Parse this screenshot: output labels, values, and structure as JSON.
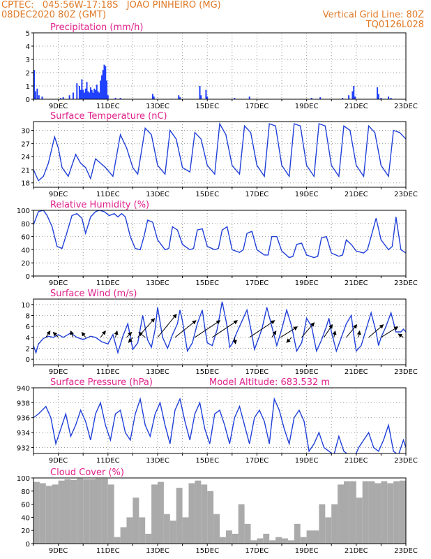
{
  "header": {
    "line1_left": "CPTEC:   045:56W-17:18S   JOAO PINHEIRO (MG)",
    "line2_left": "08DEC2020 80Z (GMT)",
    "line1_right": "Vertical Grid Line: 80Z",
    "line2_right": "TQ0126L028"
  },
  "colors": {
    "header": "#e07a28",
    "title": "#e0208c",
    "line": "#2040d8",
    "bar": "#2040ff",
    "cloud": "#aaaaaa",
    "arrow": "#000000"
  },
  "chart_data": [
    {
      "type": "bar",
      "title": "Precipitation (mm/h)",
      "ylim": [
        0,
        5
      ],
      "yticks": [
        0,
        1,
        2,
        3,
        4,
        5
      ],
      "xlim": [
        8.0,
        23.0
      ],
      "xticks": [
        "9DEC",
        "11DEC",
        "13DEC",
        "15DEC",
        "17DEC",
        "19DEC",
        "21DEC",
        "23DEC"
      ],
      "grid": true,
      "x": [
        8.03,
        8.08,
        8.15,
        8.22,
        8.35,
        9.1,
        9.2,
        9.45,
        9.6,
        9.75,
        9.85,
        9.9,
        9.95,
        10.0,
        10.05,
        10.1,
        10.15,
        10.2,
        10.25,
        10.3,
        10.35,
        10.4,
        10.45,
        10.5,
        10.55,
        10.6,
        10.65,
        10.7,
        10.75,
        10.8,
        10.85,
        10.9,
        10.95,
        11.0,
        11.3,
        11.5,
        12.8,
        12.85,
        13.85,
        13.9,
        14.7,
        14.75,
        14.95,
        15.0,
        16.1,
        16.7,
        19.2,
        19.55,
        20.45,
        20.7,
        20.85,
        20.9,
        20.95,
        21.85,
        21.9,
        22.0,
        22.3,
        22.4
      ],
      "values": [
        2.2,
        0.6,
        0.8,
        0.3,
        0.2,
        0.1,
        0.15,
        0.3,
        0.5,
        1.2,
        1.0,
        0.7,
        1.5,
        0.7,
        0.5,
        0.8,
        1.3,
        0.6,
        0.5,
        0.9,
        0.7,
        0.5,
        0.8,
        0.7,
        1.1,
        0.6,
        0.5,
        1.4,
        1.8,
        2.2,
        2.6,
        2.5,
        1.4,
        0.3,
        0.1,
        0.1,
        0.4,
        0.2,
        0.3,
        0.15,
        1.0,
        0.3,
        0.7,
        0.2,
        0.1,
        0.2,
        0.1,
        0.15,
        0.1,
        0.3,
        0.6,
        1.0,
        0.2,
        0.9,
        0.4,
        0.1,
        0.2,
        0.1
      ]
    },
    {
      "type": "line",
      "title": "Surface Temperature (nC)",
      "ylim": [
        17,
        32
      ],
      "yticks": [
        18,
        21,
        24,
        27,
        30
      ],
      "xlim": [
        8.0,
        23.0
      ],
      "xticks": [
        "9DEC",
        "11DEC",
        "13DEC",
        "15DEC",
        "17DEC",
        "19DEC",
        "21DEC",
        "23DEC"
      ],
      "grid": true,
      "x": [
        8.0,
        8.2,
        8.4,
        8.6,
        8.85,
        9.0,
        9.15,
        9.4,
        9.7,
        9.9,
        10.1,
        10.3,
        10.5,
        10.7,
        10.9,
        11.2,
        11.5,
        11.75,
        12.0,
        12.2,
        12.5,
        12.75,
        13.0,
        13.3,
        13.5,
        13.75,
        14.0,
        14.3,
        14.5,
        14.75,
        15.0,
        15.3,
        15.5,
        15.75,
        16.0,
        16.3,
        16.5,
        16.75,
        17.0,
        17.3,
        17.5,
        17.75,
        18.0,
        18.3,
        18.5,
        18.75,
        19.0,
        19.3,
        19.5,
        19.75,
        20.0,
        20.3,
        20.5,
        20.75,
        21.0,
        21.3,
        21.5,
        21.75,
        22.0,
        22.3,
        22.5,
        22.75,
        23.0
      ],
      "values": [
        21,
        18.5,
        19.5,
        22.5,
        28.5,
        26,
        21.5,
        19.5,
        24.5,
        22.5,
        21.5,
        19,
        23.5,
        22.5,
        21.5,
        19.5,
        29,
        26,
        21.5,
        20,
        30.5,
        29,
        22,
        20,
        30,
        28,
        21.5,
        20.5,
        29.5,
        28,
        22,
        20,
        31.5,
        29,
        22,
        20,
        31,
        29.5,
        22,
        19.5,
        31.5,
        31,
        22,
        19.5,
        31.5,
        31,
        22,
        19.5,
        31.5,
        31,
        22,
        19.5,
        31,
        30,
        22,
        19.5,
        31,
        29.5,
        22,
        19.5,
        30,
        29.5,
        28
      ]
    },
    {
      "type": "line",
      "title": "Relative Humidity (%)",
      "ylim": [
        0,
        100
      ],
      "yticks": [
        0,
        20,
        40,
        60,
        80,
        100
      ],
      "xlim": [
        8.0,
        23.0
      ],
      "xticks": [
        "9DEC",
        "11DEC",
        "13DEC",
        "15DEC",
        "17DEC",
        "19DEC",
        "21DEC",
        "23DEC"
      ],
      "grid": true,
      "x": [
        8.0,
        8.2,
        8.4,
        8.55,
        8.75,
        8.95,
        9.15,
        9.3,
        9.55,
        9.75,
        9.95,
        10.1,
        10.3,
        10.5,
        10.65,
        10.85,
        11.05,
        11.25,
        11.4,
        11.55,
        11.7,
        11.9,
        12.1,
        12.3,
        12.45,
        12.6,
        12.8,
        13.0,
        13.3,
        13.45,
        13.6,
        13.8,
        14.0,
        14.3,
        14.45,
        14.6,
        14.8,
        15.0,
        15.3,
        15.45,
        15.6,
        15.8,
        16.0,
        16.3,
        16.45,
        16.6,
        16.8,
        17.0,
        17.3,
        17.45,
        17.6,
        17.8,
        18.0,
        18.3,
        18.45,
        18.6,
        18.8,
        19.0,
        19.3,
        19.45,
        19.6,
        19.8,
        20.0,
        20.3,
        20.45,
        20.6,
        20.8,
        21.0,
        21.3,
        21.45,
        21.6,
        21.8,
        22.0,
        22.3,
        22.45,
        22.6,
        22.8,
        23.0
      ],
      "values": [
        78,
        98,
        100,
        92,
        75,
        45,
        42,
        60,
        92,
        95,
        88,
        65,
        90,
        98,
        100,
        98,
        92,
        95,
        90,
        95,
        90,
        60,
        42,
        40,
        60,
        85,
        82,
        55,
        40,
        42,
        75,
        70,
        48,
        40,
        42,
        70,
        72,
        45,
        40,
        42,
        70,
        75,
        40,
        36,
        40,
        65,
        68,
        40,
        32,
        32,
        60,
        60,
        38,
        28,
        30,
        48,
        50,
        32,
        28,
        30,
        58,
        60,
        35,
        30,
        32,
        55,
        48,
        38,
        35,
        40,
        60,
        88,
        55,
        40,
        45,
        90,
        40,
        35
      ]
    },
    {
      "type": "line",
      "title": "Surface Wind (m/s)",
      "ylim": [
        -1,
        11
      ],
      "yticks": [
        0,
        2,
        4,
        6,
        8,
        10
      ],
      "xlim": [
        8.0,
        23.0
      ],
      "xticks": [
        "9DEC",
        "11DEC",
        "13DEC",
        "15DEC",
        "17DEC",
        "19DEC",
        "21DEC",
        "23DEC"
      ],
      "grid": true,
      "x": [
        8.0,
        8.1,
        8.2,
        8.4,
        8.6,
        8.8,
        9.0,
        9.2,
        9.5,
        9.75,
        10.0,
        10.3,
        10.5,
        10.75,
        11.0,
        11.2,
        11.4,
        11.6,
        11.8,
        12.0,
        12.2,
        12.4,
        12.6,
        12.75,
        12.9,
        13.0,
        13.2,
        13.4,
        13.6,
        13.8,
        13.9,
        14.0,
        14.2,
        14.4,
        14.6,
        14.8,
        14.9,
        15.0,
        15.2,
        15.4,
        15.6,
        15.8,
        15.9,
        16.0,
        16.2,
        16.4,
        16.6,
        16.8,
        16.9,
        17.0,
        17.2,
        17.4,
        17.6,
        17.8,
        17.9,
        18.0,
        18.2,
        18.4,
        18.6,
        18.8,
        18.9,
        19.0,
        19.2,
        19.4,
        19.6,
        19.8,
        19.9,
        20.0,
        20.2,
        20.4,
        20.6,
        20.8,
        20.9,
        21.0,
        21.2,
        21.4,
        21.6,
        21.8,
        21.9,
        22.0,
        22.2,
        22.4,
        22.6,
        22.8,
        22.9,
        23.0
      ],
      "values": [
        2.5,
        1.2,
        2.8,
        3.8,
        4.2,
        4.0,
        4.5,
        4.0,
        4.8,
        4.0,
        3.6,
        4.2,
        4.0,
        3.2,
        2.8,
        4.5,
        1.2,
        4.2,
        6.5,
        1.8,
        3.0,
        8.0,
        3.5,
        2.2,
        5.5,
        9.5,
        4.0,
        2.0,
        4.5,
        6.5,
        9.0,
        7.0,
        1.5,
        3.0,
        6.5,
        9.0,
        5.8,
        3.0,
        2.5,
        5.5,
        10.5,
        6.0,
        2.2,
        2.8,
        5.0,
        7.0,
        9.0,
        4.5,
        1.8,
        3.0,
        5.5,
        9.5,
        6.0,
        2.5,
        4.0,
        5.5,
        9.0,
        6.0,
        1.5,
        3.0,
        5.0,
        7.5,
        6.0,
        1.5,
        3.5,
        6.0,
        7.5,
        5.0,
        1.5,
        4.0,
        6.5,
        8.0,
        4.5,
        1.5,
        2.5,
        5.5,
        8.5,
        5.0,
        2.5,
        4.0,
        6.0,
        8.5,
        5.0,
        5.0,
        5.5,
        5.0
      ],
      "arrows": [
        {
          "x": 8.5,
          "u": 1.0,
          "v": 1.5
        },
        {
          "x": 9.0,
          "u": -1.2,
          "v": 1.2
        },
        {
          "x": 9.6,
          "u": -0.6,
          "v": 1.5
        },
        {
          "x": 10.1,
          "u": -0.9,
          "v": 1.2
        },
        {
          "x": 10.7,
          "u": 1.2,
          "v": 1.5
        },
        {
          "x": 11.3,
          "u": 0.4,
          "v": 1.5
        },
        {
          "x": 11.75,
          "u": 1.2,
          "v": 1.2
        },
        {
          "x": 12.0,
          "u": -1.0,
          "v": -1.2
        },
        {
          "x": 12.2,
          "u": 4.0,
          "v": 4.5
        },
        {
          "x": 12.5,
          "u": -1.5,
          "v": 1.2
        },
        {
          "x": 13.0,
          "u": 4.5,
          "v": 5.5
        },
        {
          "x": 13.7,
          "u": 5.0,
          "v": 4.0
        },
        {
          "x": 14.5,
          "u": 6.0,
          "v": 4.0
        },
        {
          "x": 15.2,
          "u": 6.0,
          "v": 4.0
        },
        {
          "x": 16.1,
          "u": 0.2,
          "v": -1.5
        },
        {
          "x": 16.7,
          "u": 6.0,
          "v": 4.0
        },
        {
          "x": 17.6,
          "u": 1.0,
          "v": 1.5
        },
        {
          "x": 17.95,
          "u": 4.0,
          "v": 2.5
        },
        {
          "x": 18.4,
          "u": -1.2,
          "v": -1.2
        },
        {
          "x": 18.8,
          "u": 3.0,
          "v": 3.5
        },
        {
          "x": 19.7,
          "u": 2.0,
          "v": 3.0
        },
        {
          "x": 20.1,
          "u": 0.3,
          "v": 1.5
        },
        {
          "x": 20.6,
          "u": 2.5,
          "v": 3.0
        },
        {
          "x": 21.1,
          "u": 0.2,
          "v": 1.5
        },
        {
          "x": 21.5,
          "u": 3.5,
          "v": 3.0
        },
        {
          "x": 22.0,
          "u": 4.0,
          "v": 2.5
        },
        {
          "x": 22.9,
          "u": -1.2,
          "v": 0.8
        }
      ]
    },
    {
      "type": "line",
      "title": "Surface Pressure (hPa)",
      "annotation": "Model Altitude: 683.532 m",
      "ylim": [
        931.2,
        940
      ],
      "yticks": [
        932,
        934,
        936,
        938,
        940
      ],
      "xlim": [
        8.0,
        23.0
      ],
      "xticks": [
        "9DEC",
        "11DEC",
        "13DEC",
        "15DEC",
        "17DEC",
        "19DEC",
        "21DEC",
        "23DEC"
      ],
      "grid": true,
      "x": [
        8.0,
        8.2,
        8.5,
        8.7,
        8.9,
        9.1,
        9.3,
        9.5,
        9.7,
        9.9,
        10.1,
        10.3,
        10.5,
        10.7,
        10.9,
        11.1,
        11.3,
        11.5,
        11.7,
        11.9,
        12.1,
        12.3,
        12.5,
        12.7,
        12.9,
        13.1,
        13.3,
        13.5,
        13.7,
        13.9,
        14.1,
        14.3,
        14.5,
        14.7,
        14.9,
        15.1,
        15.3,
        15.5,
        15.7,
        15.9,
        16.1,
        16.3,
        16.5,
        16.7,
        16.9,
        17.1,
        17.3,
        17.5,
        17.7,
        17.9,
        18.1,
        18.3,
        18.5,
        18.7,
        18.9,
        19.1,
        19.3,
        19.5,
        19.7,
        19.9,
        20.1,
        20.3,
        20.5,
        20.7,
        20.9,
        21.1,
        21.3,
        21.5,
        21.7,
        21.9,
        22.1,
        22.3,
        22.5,
        22.7,
        22.9,
        23.0
      ],
      "values": [
        936,
        936.5,
        937.5,
        936,
        932.5,
        934.5,
        936.5,
        933.5,
        935,
        937,
        935.5,
        933,
        936.5,
        938,
        935,
        933,
        936.5,
        937,
        934,
        933,
        936.5,
        938.5,
        935,
        933.5,
        936.5,
        938,
        935,
        932.5,
        937,
        938.5,
        935.5,
        933,
        936.5,
        938,
        934.5,
        932.5,
        936.5,
        937,
        935,
        932.5,
        936,
        937.5,
        935,
        932.5,
        936,
        937,
        935.5,
        932.5,
        938.5,
        937,
        934.5,
        932.5,
        936,
        937,
        935.5,
        931.5,
        932.5,
        934,
        932,
        931.5,
        931,
        933.5,
        931.5,
        931,
        930.5,
        932,
        933,
        934,
        932,
        931.5,
        933,
        935,
        931.5,
        931,
        933,
        932
      ]
    },
    {
      "type": "bar",
      "title": "Cloud Cover (%)",
      "ylim": [
        0,
        100
      ],
      "yticks": [
        0,
        20,
        40,
        60,
        80,
        100
      ],
      "xlim": [
        8.0,
        23.0
      ],
      "xticks": [
        "9DEC",
        "11DEC",
        "13DEC",
        "15DEC",
        "17DEC",
        "19DEC",
        "21DEC",
        "23DEC"
      ],
      "grid": false,
      "x": [
        8.0,
        8.25,
        8.5,
        8.75,
        9.0,
        9.25,
        9.5,
        9.75,
        10.0,
        10.25,
        10.5,
        10.75,
        11.0,
        11.25,
        11.5,
        11.75,
        12.0,
        12.25,
        12.5,
        12.75,
        13.0,
        13.25,
        13.5,
        13.75,
        14.0,
        14.25,
        14.5,
        14.75,
        15.0,
        15.25,
        15.5,
        15.75,
        16.0,
        16.25,
        16.5,
        16.75,
        17.0,
        17.25,
        17.5,
        17.75,
        18.0,
        18.25,
        18.5,
        18.75,
        19.0,
        19.25,
        19.5,
        19.75,
        20.0,
        20.25,
        20.5,
        20.75,
        21.0,
        21.25,
        21.5,
        21.75,
        22.0,
        22.25,
        22.5,
        22.75
      ],
      "values": [
        94,
        92,
        88,
        90,
        96,
        98,
        97,
        99,
        98,
        98,
        99,
        99,
        90,
        10,
        25,
        40,
        70,
        40,
        15,
        90,
        94,
        45,
        35,
        85,
        40,
        92,
        96,
        90,
        80,
        45,
        10,
        20,
        15,
        60,
        30,
        5,
        8,
        15,
        5,
        10,
        8,
        5,
        30,
        10,
        20,
        20,
        60,
        40,
        60,
        90,
        95,
        95,
        70,
        95,
        95,
        92,
        95,
        92,
        95,
        96
      ]
    }
  ]
}
